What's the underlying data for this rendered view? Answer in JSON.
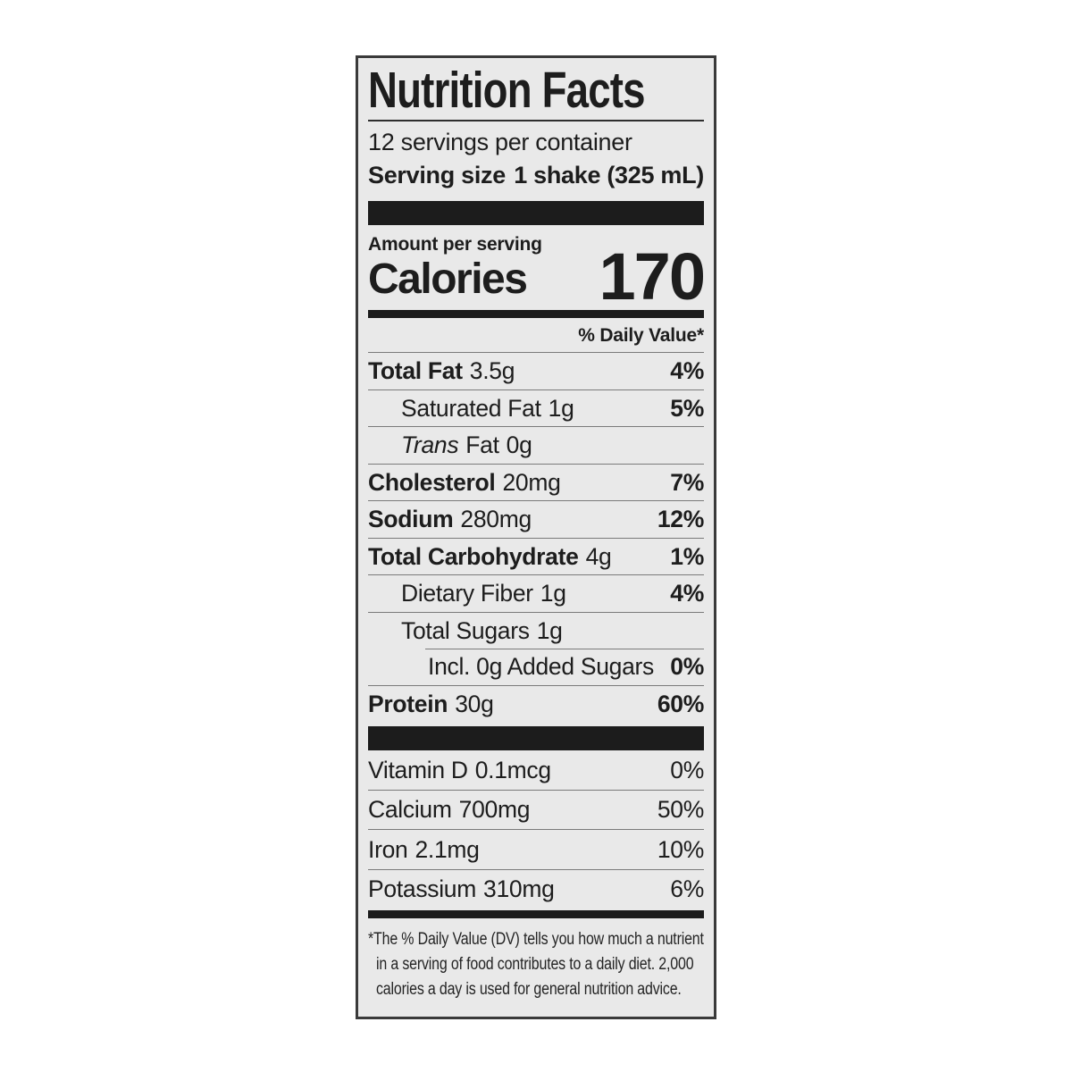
{
  "label": {
    "title": "Nutrition Facts",
    "servings_per_container": "12 servings per container",
    "serving_size": {
      "label": "Serving size",
      "value": "1 shake (325 mL)"
    },
    "amount_per_serving": "Amount per serving",
    "calories": {
      "label": "Calories",
      "value": "170"
    },
    "daily_value_header": "% Daily Value*",
    "nutrients": [
      {
        "name": "Total Fat",
        "amount": "3.5g",
        "dv": "4%"
      },
      {
        "name": "Saturated Fat",
        "amount": "1g",
        "dv": "5%"
      },
      {
        "name_italic": "Trans",
        "name": "Fat",
        "amount": "0g",
        "dv": ""
      },
      {
        "name": "Cholesterol",
        "amount": "20mg",
        "dv": "7%"
      },
      {
        "name": "Sodium",
        "amount": "280mg",
        "dv": "12%"
      },
      {
        "name": "Total Carbohydrate",
        "amount": "4g",
        "dv": "1%"
      },
      {
        "name": "Dietary Fiber",
        "amount": "1g",
        "dv": "4%"
      },
      {
        "name": "Total Sugars",
        "amount": "1g",
        "dv": ""
      },
      {
        "name": "Incl. 0g Added Sugars",
        "amount": "",
        "dv": "0%"
      },
      {
        "name": "Protein",
        "amount": "30g",
        "dv": "60%"
      }
    ],
    "vitamins": [
      {
        "name": "Vitamin D",
        "amount": "0.1mcg",
        "dv": "0%"
      },
      {
        "name": "Calcium",
        "amount": "700mg",
        "dv": "50%"
      },
      {
        "name": "Iron",
        "amount": "2.1mg",
        "dv": "10%"
      },
      {
        "name": "Potassium",
        "amount": "310mg",
        "dv": "6%"
      }
    ],
    "footnote_lines": [
      "*The % Daily Value (DV) tells you how much a nutrient",
      "in a serving of food contributes to a daily diet. 2,000",
      "calories a day is used for general nutrition advice."
    ],
    "colors": {
      "page_background": "#ffffff",
      "label_background": "#e9e9e9",
      "text": "#1d1d1d",
      "bar": "#1c1c1c",
      "hairline": "#7a7a7a"
    }
  }
}
